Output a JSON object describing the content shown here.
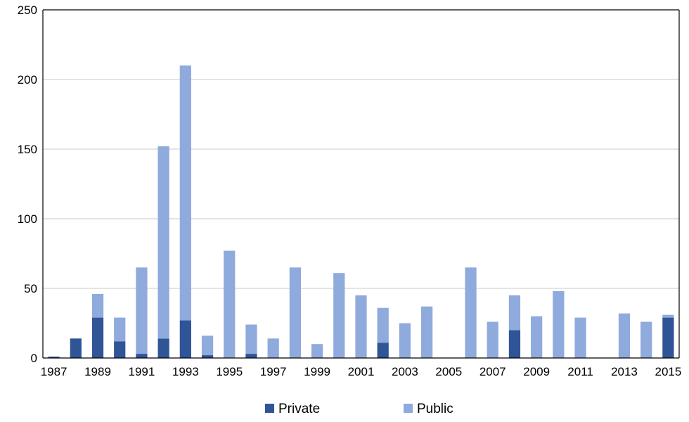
{
  "chart_data": {
    "type": "bar",
    "stacked": true,
    "categories": [
      "1987",
      "1988",
      "1989",
      "1990",
      "1991",
      "1992",
      "1993",
      "1994",
      "1995",
      "1996",
      "1997",
      "1998",
      "1999",
      "2000",
      "2001",
      "2002",
      "2003",
      "2004",
      "2005",
      "2006",
      "2007",
      "2008",
      "2009",
      "2010",
      "2011",
      "2012",
      "2013",
      "2014",
      "2015"
    ],
    "x_tick_labels": [
      "1987",
      "1989",
      "1991",
      "1993",
      "1995",
      "1997",
      "1999",
      "2001",
      "2003",
      "2005",
      "2007",
      "2009",
      "2011",
      "2013",
      "2015"
    ],
    "series": [
      {
        "name": "Private",
        "color": "#2f5597",
        "values": [
          1,
          14,
          29,
          12,
          3,
          14,
          27,
          2,
          0,
          3,
          0,
          0,
          0,
          0,
          0,
          11,
          0,
          0,
          0,
          0,
          0,
          20,
          0,
          0,
          0,
          0,
          0,
          0,
          29
        ]
      },
      {
        "name": "Public",
        "color": "#8faadc",
        "values": [
          0,
          0,
          17,
          17,
          62,
          138,
          183,
          14,
          77,
          21,
          14,
          65,
          10,
          61,
          45,
          25,
          25,
          37,
          0,
          65,
          26,
          25,
          30,
          48,
          29,
          0,
          32,
          26,
          2
        ]
      }
    ],
    "title": "",
    "xlabel": "",
    "ylabel": "",
    "ylim": [
      0,
      250
    ],
    "y_ticks": [
      0,
      50,
      100,
      150,
      200,
      250
    ],
    "grid": "horizontal",
    "legend_position": "bottom-center"
  }
}
